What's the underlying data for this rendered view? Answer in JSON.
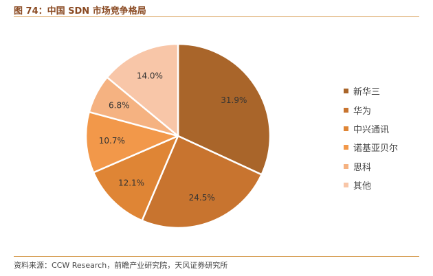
{
  "figure": {
    "title": "图 74：中国 SDN 市场竞争格局",
    "source": "资料来源：CCW Research，前瞻产业研究院，天风证券研究所"
  },
  "chart_data": {
    "type": "pie",
    "title": "图 74：中国 SDN 市场竞争格局",
    "legend_position": "right",
    "unit": "%",
    "slices": [
      {
        "label": "新华三",
        "value": 31.9,
        "display": "31.9%",
        "color": "#a9652a"
      },
      {
        "label": "华为",
        "value": 24.5,
        "display": "24.5%",
        "color": "#c8742f"
      },
      {
        "label": "中兴通讯",
        "value": 12.1,
        "display": "12.1%",
        "color": "#df8535"
      },
      {
        "label": "诺基亚贝尔",
        "value": 10.7,
        "display": "10.7%",
        "color": "#f2984a"
      },
      {
        "label": "思科",
        "value": 6.8,
        "display": "6.8%",
        "color": "#f5b281"
      },
      {
        "label": "其他",
        "value": 14.0,
        "display": "14.0%",
        "color": "#f8c6a8"
      }
    ]
  }
}
